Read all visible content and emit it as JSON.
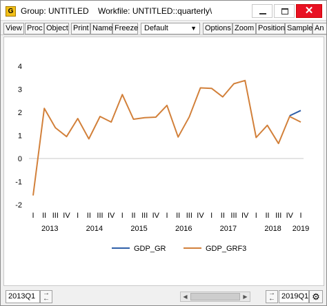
{
  "window": {
    "title": "Group: UNTITLED    Workfile: UNTITLED::quarterly\\",
    "app_icon_letter": "G",
    "close_glyph": "✕"
  },
  "toolbar": {
    "view": "View",
    "proc": "Proc",
    "object": "Object",
    "print": "Print",
    "name": "Name",
    "freeze": "Freeze",
    "display_select": "Default",
    "options": "Options",
    "zoom": "Zoom",
    "position": "Position",
    "sample": "Sample",
    "more": "An"
  },
  "footer": {
    "start_date": "2013Q1",
    "end_date": "2019Q1"
  },
  "chart_data": {
    "type": "line",
    "x_quarter_labels": [
      "I",
      "II",
      "III",
      "IV",
      "I",
      "II",
      "III",
      "IV",
      "I",
      "II",
      "III",
      "IV",
      "I",
      "II",
      "III",
      "IV",
      "I",
      "II",
      "III",
      "IV",
      "I",
      "II",
      "III",
      "IV",
      "I"
    ],
    "year_labels": [
      "2013",
      "2014",
      "2015",
      "2016",
      "2017",
      "2018",
      "2019"
    ],
    "ylim": [
      -2,
      4
    ],
    "yticks": [
      "-2",
      "-1",
      "0",
      "1",
      "2",
      "3",
      "4"
    ],
    "grid": true,
    "legend_position": "bottom",
    "series": [
      {
        "name": "GDP_GR",
        "color": "#2e5ea8",
        "values": [
          null,
          null,
          null,
          null,
          null,
          null,
          null,
          null,
          null,
          null,
          null,
          null,
          null,
          null,
          null,
          null,
          null,
          null,
          null,
          null,
          null,
          null,
          null,
          1.85,
          2.08
        ]
      },
      {
        "name": "GDP_GRF3",
        "color": "#d2803a",
        "values": [
          -1.6,
          2.17,
          1.33,
          0.95,
          1.73,
          0.85,
          1.82,
          1.58,
          2.77,
          1.7,
          1.77,
          1.79,
          2.3,
          0.93,
          1.8,
          3.06,
          3.04,
          2.67,
          3.24,
          3.38,
          0.91,
          1.44,
          0.65,
          1.82,
          1.58
        ]
      }
    ]
  }
}
